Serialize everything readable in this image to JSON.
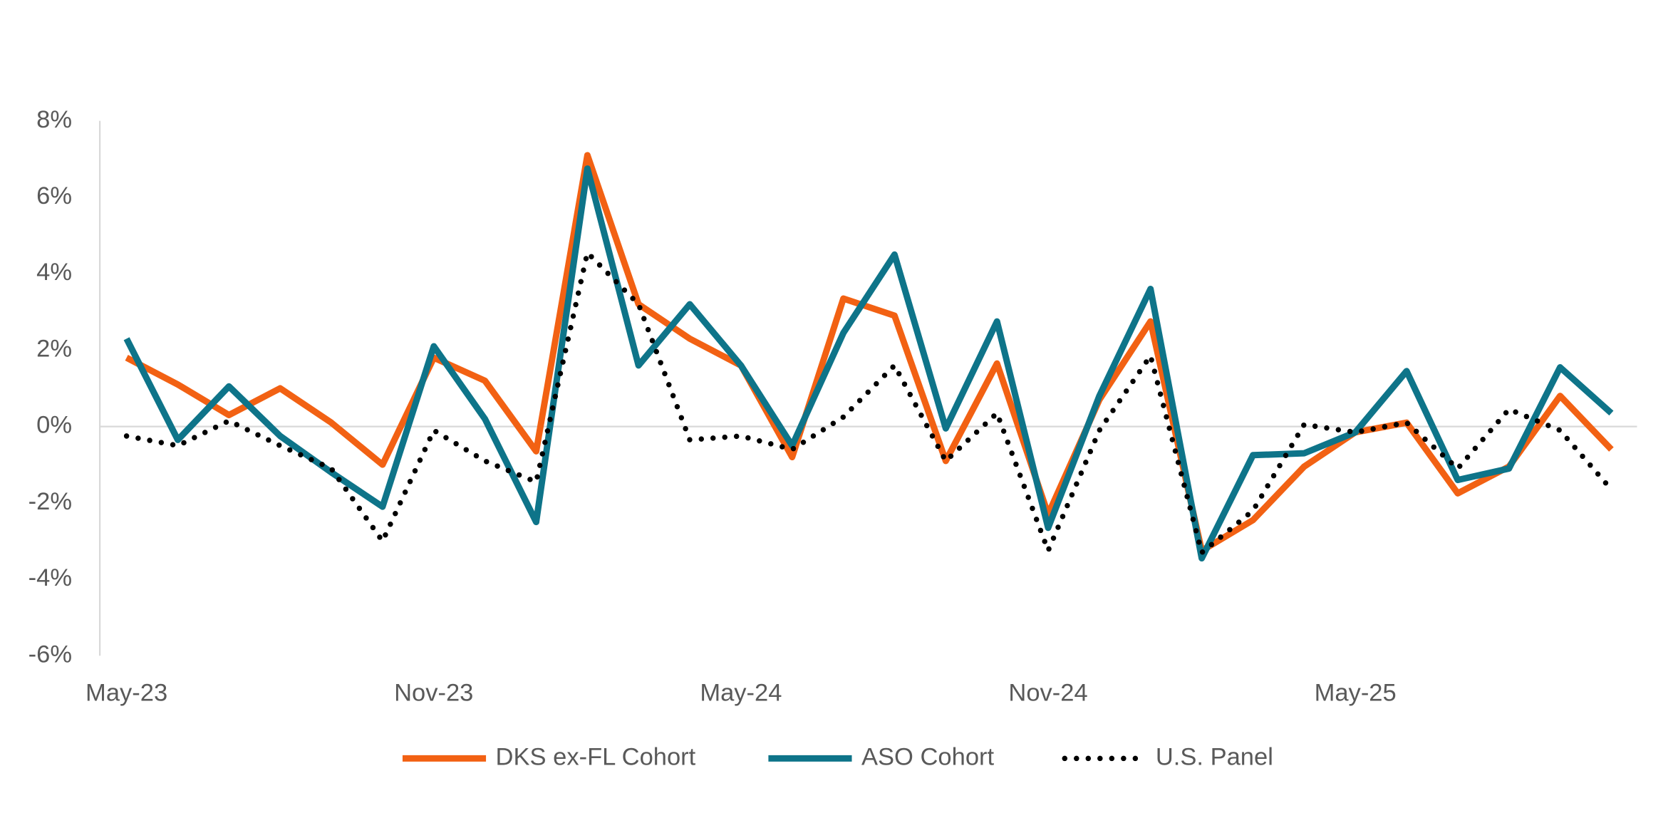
{
  "chart_data": {
    "type": "line",
    "categories": [
      "May-23",
      null,
      null,
      null,
      null,
      null,
      "Nov-23",
      null,
      null,
      null,
      null,
      null,
      "May-24",
      null,
      null,
      null,
      null,
      null,
      "Nov-24",
      null,
      null,
      null,
      null,
      null,
      "May-25",
      null,
      null,
      null,
      null,
      null
    ],
    "series": [
      {
        "name": "DKS ex-FL Cohort",
        "color": "#f26113",
        "line_style": "solid",
        "values": [
          1.8,
          1.1,
          0.3,
          1.0,
          0.1,
          -1.0,
          1.8,
          1.2,
          -0.65,
          7.1,
          3.2,
          2.3,
          1.6,
          -0.8,
          3.35,
          2.9,
          -0.9,
          1.65,
          -2.3,
          0.7,
          2.75,
          -3.25,
          -2.45,
          -1.05,
          -0.15,
          0.1,
          -1.75,
          -1.05,
          0.8,
          -0.6
        ]
      },
      {
        "name": "ASO Cohort",
        "color": "#0e7489",
        "line_style": "solid",
        "values": [
          2.3,
          -0.35,
          1.05,
          -0.25,
          -1.2,
          -2.1,
          2.1,
          0.2,
          -2.5,
          6.75,
          1.6,
          3.2,
          1.6,
          -0.5,
          2.45,
          4.5,
          -0.05,
          2.75,
          -2.65,
          0.8,
          3.6,
          -3.45,
          -0.75,
          -0.7,
          -0.15,
          1.45,
          -1.4,
          -1.1,
          1.55,
          0.35
        ]
      },
      {
        "name": "U.S. Panel",
        "color": "#000000",
        "line_style": "dotted",
        "values": [
          -0.25,
          -0.5,
          0.15,
          -0.5,
          -1.1,
          -3.0,
          -0.1,
          -0.9,
          -1.45,
          4.55,
          3.2,
          -0.35,
          -0.25,
          -0.6,
          0.25,
          1.6,
          -0.9,
          0.35,
          -3.25,
          -0.1,
          1.85,
          -3.3,
          -2.2,
          0.05,
          -0.15,
          0.1,
          -1.1,
          0.45,
          -0.1,
          -1.65
        ]
      }
    ],
    "ylim": [
      -6,
      8
    ],
    "yticks": [
      {
        "value": -6,
        "label": "-6%"
      },
      {
        "value": -4,
        "label": "-4%"
      },
      {
        "value": -2,
        "label": "-2%"
      },
      {
        "value": 0,
        "label": "0%"
      },
      {
        "value": 2,
        "label": "2%"
      },
      {
        "value": 4,
        "label": "4%"
      },
      {
        "value": 6,
        "label": "6%"
      },
      {
        "value": 8,
        "label": "8%"
      }
    ],
    "legend": "bottom"
  }
}
